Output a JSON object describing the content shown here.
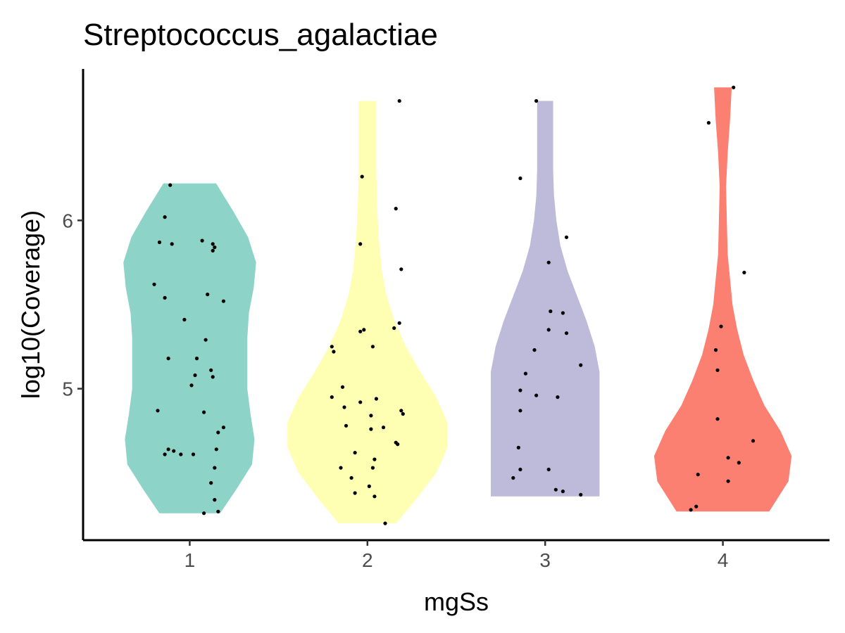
{
  "chart_data": {
    "type": "violin",
    "title": "Streptococcus_agalactiae",
    "xlabel": "mgSs",
    "ylabel": "log10(Coverage)",
    "categories": [
      "1",
      "2",
      "3",
      "4"
    ],
    "yticks": [
      5,
      6
    ],
    "ylim": [
      4.1,
      6.9
    ],
    "grid": false,
    "legend": "none",
    "colors": [
      "#8DD3C7",
      "#FFFFB3",
      "#BEBADA",
      "#FB8072"
    ],
    "violins": [
      {
        "category": "1",
        "min": 4.26,
        "max": 6.22,
        "density_y": [
          4.26,
          4.4,
          4.55,
          4.7,
          4.85,
          5.0,
          5.15,
          5.3,
          5.45,
          5.6,
          5.75,
          5.9,
          6.05,
          6.22
        ],
        "density_w": [
          0.38,
          0.58,
          0.78,
          0.81,
          0.76,
          0.72,
          0.72,
          0.72,
          0.74,
          0.8,
          0.83,
          0.73,
          0.55,
          0.33
        ]
      },
      {
        "category": "2",
        "min": 4.2,
        "max": 6.71,
        "density_y": [
          4.2,
          4.35,
          4.5,
          4.65,
          4.8,
          4.95,
          5.1,
          5.25,
          5.4,
          5.55,
          5.7,
          5.9,
          6.1,
          6.3,
          6.5,
          6.71
        ],
        "density_w": [
          0.36,
          0.62,
          0.86,
          1.0,
          1.0,
          0.86,
          0.66,
          0.48,
          0.34,
          0.24,
          0.18,
          0.14,
          0.12,
          0.11,
          0.11,
          0.11
        ]
      },
      {
        "category": "3",
        "min": 4.36,
        "max": 6.71,
        "density_y": [
          4.36,
          4.5,
          4.65,
          4.8,
          4.95,
          5.1,
          5.25,
          5.4,
          5.55,
          5.7,
          5.85,
          6.0,
          6.15,
          6.3,
          6.5,
          6.71
        ],
        "density_w": [
          0.68,
          0.68,
          0.68,
          0.68,
          0.68,
          0.68,
          0.62,
          0.52,
          0.4,
          0.28,
          0.19,
          0.14,
          0.11,
          0.1,
          0.1,
          0.1
        ]
      },
      {
        "category": "4",
        "min": 4.27,
        "max": 6.79,
        "density_y": [
          4.27,
          4.45,
          4.6,
          4.75,
          4.9,
          5.05,
          5.2,
          5.35,
          5.5,
          5.65,
          5.8,
          6.0,
          6.2,
          6.4,
          6.6,
          6.79
        ],
        "density_w": [
          0.58,
          0.82,
          0.86,
          0.72,
          0.52,
          0.38,
          0.26,
          0.18,
          0.12,
          0.09,
          0.06,
          0.05,
          0.04,
          0.06,
          0.09,
          0.11
        ]
      }
    ],
    "points": [
      {
        "x": 0.86,
        "y": 4.61
      },
      {
        "x": 0.88,
        "y": 4.64
      },
      {
        "x": 0.91,
        "y": 4.63
      },
      {
        "x": 0.95,
        "y": 4.61
      },
      {
        "x": 1.02,
        "y": 4.61
      },
      {
        "x": 1.08,
        "y": 4.86
      },
      {
        "x": 0.82,
        "y": 4.87
      },
      {
        "x": 1.15,
        "y": 4.64
      },
      {
        "x": 1.16,
        "y": 4.74
      },
      {
        "x": 1.19,
        "y": 4.77
      },
      {
        "x": 1.14,
        "y": 4.53
      },
      {
        "x": 1.12,
        "y": 4.44
      },
      {
        "x": 1.14,
        "y": 4.34
      },
      {
        "x": 1.08,
        "y": 4.26
      },
      {
        "x": 1.16,
        "y": 4.27
      },
      {
        "x": 1.01,
        "y": 5.02
      },
      {
        "x": 1.03,
        "y": 5.08
      },
      {
        "x": 0.88,
        "y": 5.18
      },
      {
        "x": 1.04,
        "y": 5.18
      },
      {
        "x": 1.12,
        "y": 5.11
      },
      {
        "x": 1.13,
        "y": 5.07
      },
      {
        "x": 1.09,
        "y": 5.29
      },
      {
        "x": 0.97,
        "y": 5.41
      },
      {
        "x": 1.19,
        "y": 5.52
      },
      {
        "x": 1.1,
        "y": 5.56
      },
      {
        "x": 0.86,
        "y": 5.54
      },
      {
        "x": 0.8,
        "y": 5.62
      },
      {
        "x": 0.83,
        "y": 5.87
      },
      {
        "x": 0.9,
        "y": 5.86
      },
      {
        "x": 1.07,
        "y": 5.88
      },
      {
        "x": 1.13,
        "y": 5.86
      },
      {
        "x": 1.13,
        "y": 5.82
      },
      {
        "x": 1.14,
        "y": 5.84
      },
      {
        "x": 0.86,
        "y": 6.02
      },
      {
        "x": 0.89,
        "y": 6.21
      },
      {
        "x": 1.8,
        "y": 5.25
      },
      {
        "x": 1.81,
        "y": 5.22
      },
      {
        "x": 1.96,
        "y": 5.34
      },
      {
        "x": 1.98,
        "y": 5.35
      },
      {
        "x": 2.03,
        "y": 5.25
      },
      {
        "x": 2.15,
        "y": 5.36
      },
      {
        "x": 2.18,
        "y": 5.39
      },
      {
        "x": 1.8,
        "y": 4.95
      },
      {
        "x": 1.86,
        "y": 5.01
      },
      {
        "x": 1.87,
        "y": 4.89
      },
      {
        "x": 1.96,
        "y": 4.92
      },
      {
        "x": 2.02,
        "y": 4.84
      },
      {
        "x": 2.05,
        "y": 4.94
      },
      {
        "x": 2.19,
        "y": 4.87
      },
      {
        "x": 2.2,
        "y": 4.85
      },
      {
        "x": 1.88,
        "y": 4.78
      },
      {
        "x": 2.02,
        "y": 4.76
      },
      {
        "x": 2.09,
        "y": 4.77
      },
      {
        "x": 2.16,
        "y": 4.68
      },
      {
        "x": 2.17,
        "y": 4.67
      },
      {
        "x": 1.93,
        "y": 4.62
      },
      {
        "x": 2.04,
        "y": 4.58
      },
      {
        "x": 1.85,
        "y": 4.53
      },
      {
        "x": 2.03,
        "y": 4.53
      },
      {
        "x": 1.91,
        "y": 4.47
      },
      {
        "x": 1.93,
        "y": 4.38
      },
      {
        "x": 2.01,
        "y": 4.42
      },
      {
        "x": 2.04,
        "y": 4.36
      },
      {
        "x": 2.1,
        "y": 4.2
      },
      {
        "x": 1.96,
        "y": 5.86
      },
      {
        "x": 2.19,
        "y": 5.71
      },
      {
        "x": 2.16,
        "y": 6.07
      },
      {
        "x": 1.97,
        "y": 6.26
      },
      {
        "x": 2.18,
        "y": 6.71
      },
      {
        "x": 2.95,
        "y": 6.71
      },
      {
        "x": 2.86,
        "y": 6.25
      },
      {
        "x": 3.12,
        "y": 5.9
      },
      {
        "x": 3.02,
        "y": 5.75
      },
      {
        "x": 3.03,
        "y": 5.46
      },
      {
        "x": 3.1,
        "y": 5.45
      },
      {
        "x": 3.02,
        "y": 5.35
      },
      {
        "x": 3.12,
        "y": 5.33
      },
      {
        "x": 2.94,
        "y": 5.23
      },
      {
        "x": 3.2,
        "y": 5.14
      },
      {
        "x": 2.89,
        "y": 5.09
      },
      {
        "x": 2.86,
        "y": 4.99
      },
      {
        "x": 2.95,
        "y": 4.96
      },
      {
        "x": 3.07,
        "y": 4.95
      },
      {
        "x": 2.86,
        "y": 4.87
      },
      {
        "x": 2.85,
        "y": 4.65
      },
      {
        "x": 2.86,
        "y": 4.52
      },
      {
        "x": 3.02,
        "y": 4.52
      },
      {
        "x": 2.82,
        "y": 4.47
      },
      {
        "x": 3.06,
        "y": 4.4
      },
      {
        "x": 3.1,
        "y": 4.39
      },
      {
        "x": 3.2,
        "y": 4.37
      },
      {
        "x": 4.06,
        "y": 6.79
      },
      {
        "x": 3.92,
        "y": 6.58
      },
      {
        "x": 4.12,
        "y": 5.69
      },
      {
        "x": 3.99,
        "y": 5.37
      },
      {
        "x": 3.96,
        "y": 5.23
      },
      {
        "x": 3.97,
        "y": 5.11
      },
      {
        "x": 3.97,
        "y": 4.82
      },
      {
        "x": 4.17,
        "y": 4.69
      },
      {
        "x": 4.03,
        "y": 4.59
      },
      {
        "x": 4.09,
        "y": 4.56
      },
      {
        "x": 3.86,
        "y": 4.49
      },
      {
        "x": 4.03,
        "y": 4.45
      },
      {
        "x": 3.85,
        "y": 4.3
      },
      {
        "x": 3.82,
        "y": 4.28
      }
    ]
  }
}
